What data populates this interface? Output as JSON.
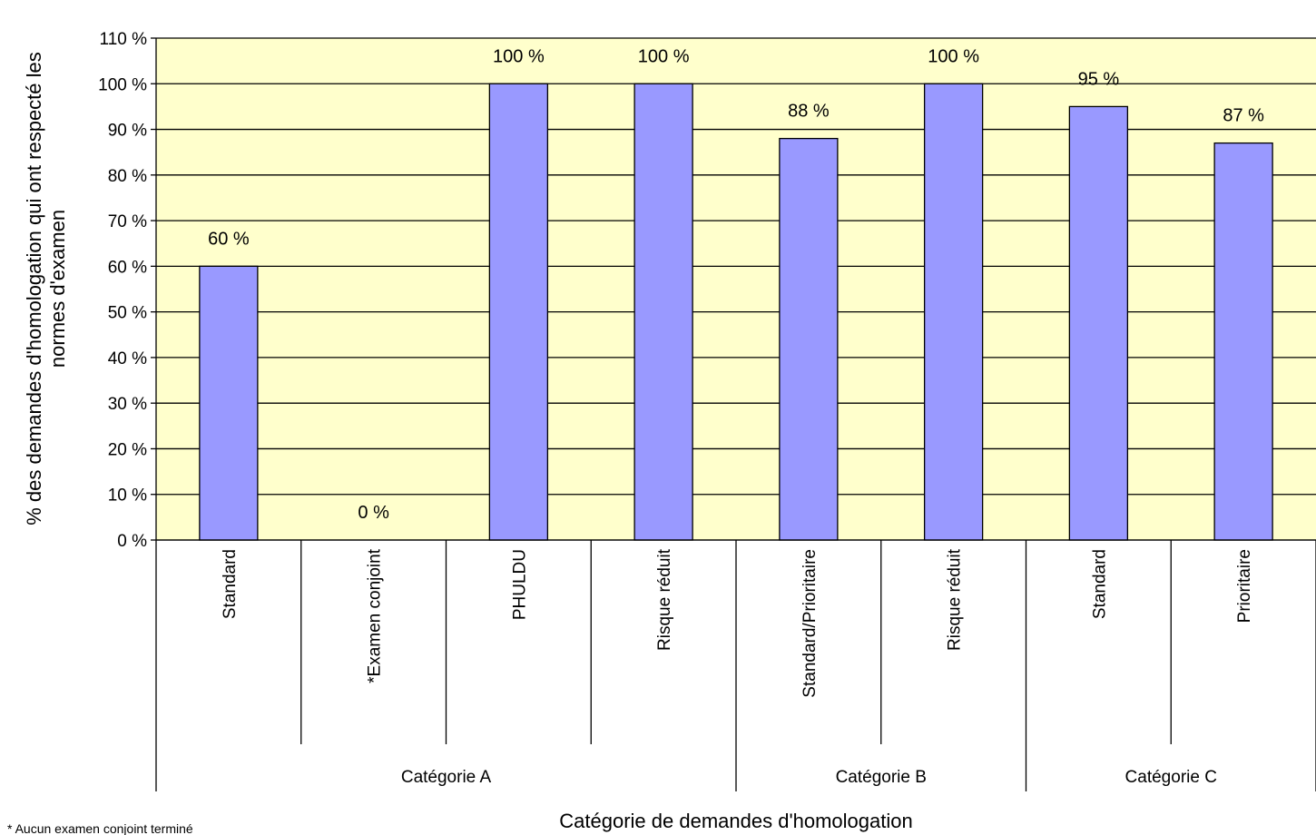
{
  "chart_data": {
    "type": "bar",
    "title": "",
    "xlabel": "Catégorie de demandes d'homologation",
    "ylabel_lines": [
      "% des demandes d'homologation  qui ont respecté les",
      "normes d'examen"
    ],
    "ylim": [
      0,
      110
    ],
    "ytick_values": [
      0,
      10,
      20,
      30,
      40,
      50,
      60,
      70,
      80,
      90,
      100,
      110
    ],
    "ytick_labels": [
      "0 %",
      "10 %",
      "20 %",
      "30 %",
      "40 %",
      "50 %",
      "60 %",
      "70 %",
      "80 %",
      "90 %",
      "100 %",
      "110 %"
    ],
    "categories": [
      "Standard",
      "*Examen conjoint",
      "PHULDU",
      "Risque réduit",
      "Standard/Prioritaire",
      "Risque réduit",
      "Standard",
      "Prioritaire"
    ],
    "values": [
      60,
      0,
      100,
      100,
      88,
      100,
      95,
      87
    ],
    "value_labels": [
      "60 %",
      "0 %",
      "100 %",
      "100 %",
      "88 %",
      "100 %",
      "95 %",
      "87 %"
    ],
    "groups": [
      {
        "name": "Catégorie A",
        "count": 4
      },
      {
        "name": "Catégorie B",
        "count": 2
      },
      {
        "name": "Catégorie C",
        "count": 2
      }
    ],
    "grid": true,
    "legend": "none",
    "colors": {
      "bar": "#9999ff",
      "plot_bg": "#ffffcc",
      "grid": "#000000"
    }
  },
  "footnote": "* Aucun examen conjoint terminé"
}
